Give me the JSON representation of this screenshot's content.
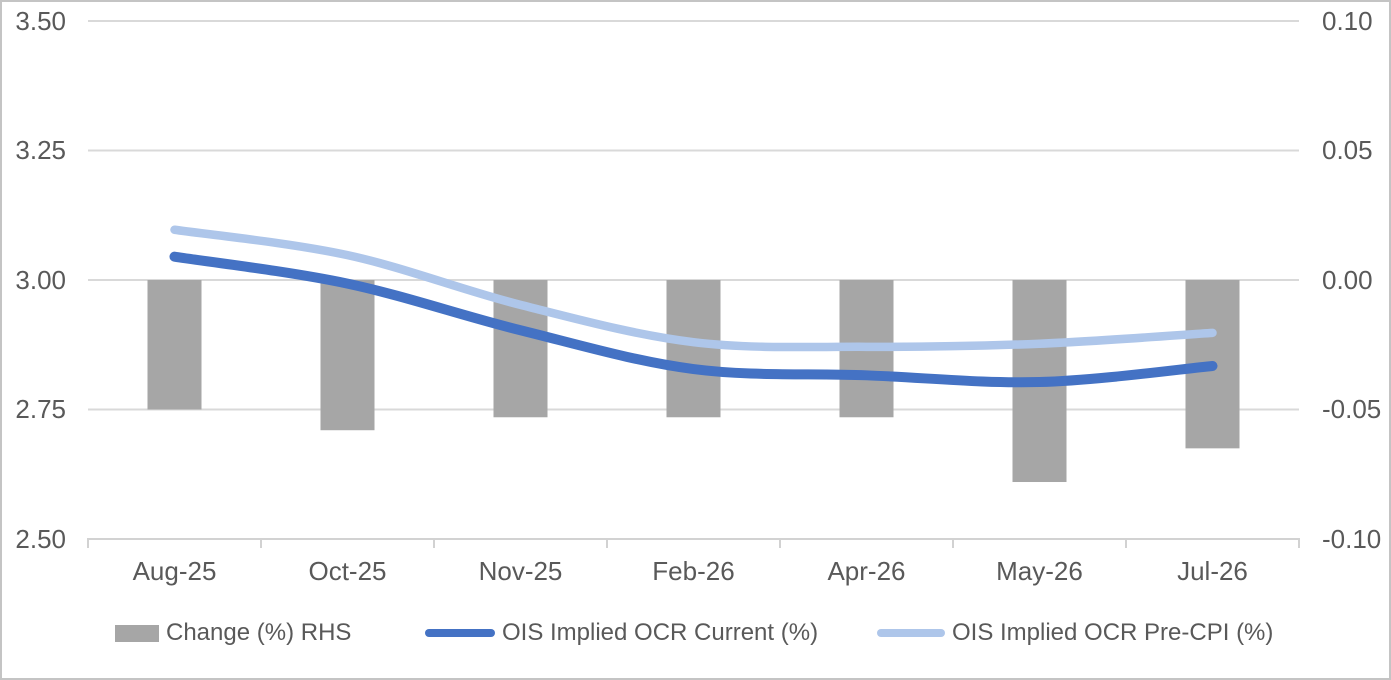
{
  "chart_data": {
    "type": "combo",
    "title": "",
    "categories": [
      "Aug-25",
      "Oct-25",
      "Nov-25",
      "Feb-26",
      "Apr-26",
      "May-26",
      "Jul-26"
    ],
    "series": [
      {
        "name": "Change (%) RHS",
        "type": "bar",
        "axis": "right",
        "color": "#A6A6A6",
        "values": [
          -0.05,
          -0.058,
          -0.053,
          -0.053,
          -0.053,
          -0.078,
          -0.065
        ]
      },
      {
        "name": "OIS Implied OCR Current (%)",
        "type": "line",
        "axis": "left",
        "color": "#4472C4",
        "values": [
          3.045,
          2.993,
          2.903,
          2.828,
          2.816,
          2.803,
          2.834
        ]
      },
      {
        "name": "OIS Implied OCR Pre-CPI (%)",
        "type": "line",
        "axis": "left",
        "color": "#AEC6EA",
        "values": [
          3.097,
          3.048,
          2.952,
          2.88,
          2.871,
          2.877,
          2.898
        ]
      }
    ],
    "left_axis": {
      "min": 2.5,
      "max": 3.5,
      "ticks": [
        "3.50",
        "3.25",
        "3.00",
        "2.75",
        "2.50"
      ]
    },
    "right_axis": {
      "min": -0.1,
      "max": 0.1,
      "ticks": [
        "0.10",
        "0.05",
        "0.00",
        "-0.05",
        "-0.10"
      ]
    },
    "grid": true,
    "legend_position": "bottom",
    "colors": {
      "grid": "#D9D9D9",
      "axis": "#D2D2D2",
      "text": "#595959"
    }
  }
}
